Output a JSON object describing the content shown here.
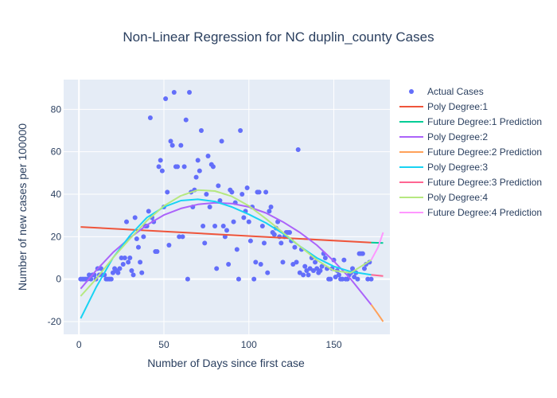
{
  "chart_data": {
    "type": "scatter",
    "title": "Non-Linear Regression for NC duplin_county Cases",
    "xlabel": "Number of Days since first case",
    "ylabel": "Number of new cases per 100000",
    "xlim": [
      -9,
      183
    ],
    "ylim": [
      -26,
      94
    ],
    "xticks": [
      0,
      50,
      100,
      150
    ],
    "yticks": [
      -20,
      0,
      20,
      40,
      60,
      80
    ],
    "grid": true,
    "legend_position": "right",
    "background_color": "#e5ecf6",
    "series": [
      {
        "name": "Actual Cases",
        "mode": "markers",
        "color": "#636efa",
        "x": [
          1,
          2,
          3,
          4,
          5,
          6,
          7,
          8,
          9,
          10,
          11,
          12,
          13,
          14,
          15,
          16,
          17,
          18,
          19,
          20,
          21,
          22,
          23,
          24,
          25,
          26,
          27,
          28,
          29,
          30,
          31,
          32,
          33,
          34,
          35,
          36,
          37,
          38,
          39,
          40,
          41,
          42,
          43,
          44,
          45,
          46,
          47,
          48,
          49,
          50,
          51,
          52,
          53,
          54,
          55,
          56,
          57,
          58,
          59,
          60,
          61,
          62,
          63,
          64,
          65,
          66,
          67,
          68,
          69,
          70,
          71,
          72,
          73,
          74,
          75,
          76,
          77,
          78,
          79,
          80,
          81,
          82,
          83,
          84,
          85,
          86,
          87,
          88,
          89,
          90,
          91,
          92,
          93,
          94,
          95,
          96,
          97,
          98,
          99,
          100,
          101,
          102,
          103,
          104,
          105,
          106,
          107,
          108,
          109,
          110,
          111,
          112,
          113,
          114,
          115,
          116,
          117,
          118,
          119,
          120,
          121,
          122,
          123,
          124,
          125,
          126,
          127,
          128,
          129,
          130,
          131,
          132,
          133,
          134,
          135,
          136,
          137,
          138,
          139,
          140,
          141,
          142,
          143,
          144,
          145,
          146,
          147,
          148,
          149,
          150,
          151,
          152,
          153,
          154,
          155,
          156,
          157,
          158,
          159,
          160,
          161,
          162,
          163,
          164,
          165,
          166,
          167,
          168,
          169,
          170,
          171,
          172
        ],
        "y": [
          0,
          0,
          0,
          0,
          0,
          2,
          0,
          2,
          2,
          0,
          5,
          2,
          5,
          2,
          2,
          0,
          0,
          0,
          0,
          3,
          5,
          4,
          3,
          5,
          10,
          7,
          10,
          27,
          8,
          10,
          4,
          2,
          29,
          19,
          15,
          8,
          3,
          20,
          25,
          25,
          32,
          76,
          29,
          27,
          13,
          13,
          53,
          56,
          51,
          34,
          85,
          41,
          16,
          65,
          63,
          88,
          53,
          53,
          20,
          63,
          20,
          53,
          75,
          0,
          88,
          41,
          34,
          42,
          48,
          56,
          51,
          70,
          25,
          17,
          40,
          58,
          34,
          54,
          53,
          25,
          5,
          44,
          37,
          65,
          25,
          20,
          23,
          7,
          42,
          41,
          27,
          36,
          14,
          0,
          70,
          40,
          29,
          32,
          43,
          27,
          18,
          34,
          0,
          8,
          41,
          41,
          7,
          25,
          17,
          41,
          3,
          32,
          34,
          22,
          21,
          24,
          27,
          20,
          17,
          8,
          20,
          22,
          22,
          22,
          18,
          7,
          15,
          8,
          61,
          3,
          14,
          2,
          6,
          4,
          2,
          5,
          10,
          4,
          8,
          5,
          3,
          4,
          6,
          12,
          10,
          5,
          0,
          0,
          5,
          9,
          1,
          4,
          2,
          0,
          0,
          9,
          0,
          0,
          2,
          3,
          5,
          1,
          3,
          0,
          12,
          12,
          12,
          5,
          7,
          0,
          8,
          0
        ]
      },
      {
        "name": "Poly Degree:1",
        "mode": "lines",
        "color": "#ef553b",
        "x": [
          1,
          172
        ],
        "y": [
          24.6,
          17.2
        ]
      },
      {
        "name": "Future Degree:1 Prediction",
        "mode": "lines",
        "color": "#00cc96",
        "x": [
          172,
          179
        ],
        "y": [
          17.2,
          17.0
        ]
      },
      {
        "name": "Poly Degree:2",
        "mode": "lines",
        "color": "#ab63fa",
        "x": [
          1,
          10,
          20,
          30,
          40,
          50,
          60,
          70,
          80,
          90,
          100,
          110,
          120,
          130,
          140,
          150,
          160,
          172
        ],
        "y": [
          -4.5,
          4,
          12.5,
          19.5,
          25.5,
          30.2,
          33.3,
          35.2,
          36,
          35.6,
          34,
          31.2,
          27,
          22,
          16,
          8.5,
          0,
          -12
        ]
      },
      {
        "name": "Future Degree:2 Prediction",
        "mode": "lines",
        "color": "#ffa15a",
        "x": [
          172,
          176,
          179
        ],
        "y": [
          -12,
          -16.5,
          -20
        ]
      },
      {
        "name": "Poly Degree:3",
        "mode": "lines",
        "color": "#19d3f3",
        "x": [
          1,
          10,
          20,
          30,
          40,
          50,
          60,
          70,
          80,
          90,
          100,
          110,
          120,
          130,
          140,
          150,
          160,
          172
        ],
        "y": [
          -18.5,
          -4,
          10,
          20.5,
          29,
          34,
          37,
          37.6,
          36.6,
          34,
          30.5,
          26.5,
          21.5,
          15.5,
          10,
          6,
          3.5,
          2
        ]
      },
      {
        "name": "Future Degree:3 Prediction",
        "mode": "lines",
        "color": "#ff6692",
        "x": [
          172,
          176,
          179
        ],
        "y": [
          2,
          1.7,
          1.5
        ]
      },
      {
        "name": "Poly Degree:4",
        "mode": "lines",
        "color": "#b6e880",
        "x": [
          1,
          10,
          20,
          30,
          40,
          50,
          60,
          70,
          80,
          90,
          100,
          110,
          120,
          130,
          140,
          150,
          160,
          172
        ],
        "y": [
          -8,
          0,
          10,
          19,
          27.5,
          34.5,
          39.3,
          42,
          41.5,
          39,
          34.5,
          28.5,
          22,
          15.5,
          9,
          4,
          3,
          9
        ]
      },
      {
        "name": "Future Degree:4 Prediction",
        "mode": "lines",
        "color": "#ff97ff",
        "x": [
          172,
          176,
          179
        ],
        "y": [
          9,
          15,
          22
        ]
      }
    ]
  }
}
